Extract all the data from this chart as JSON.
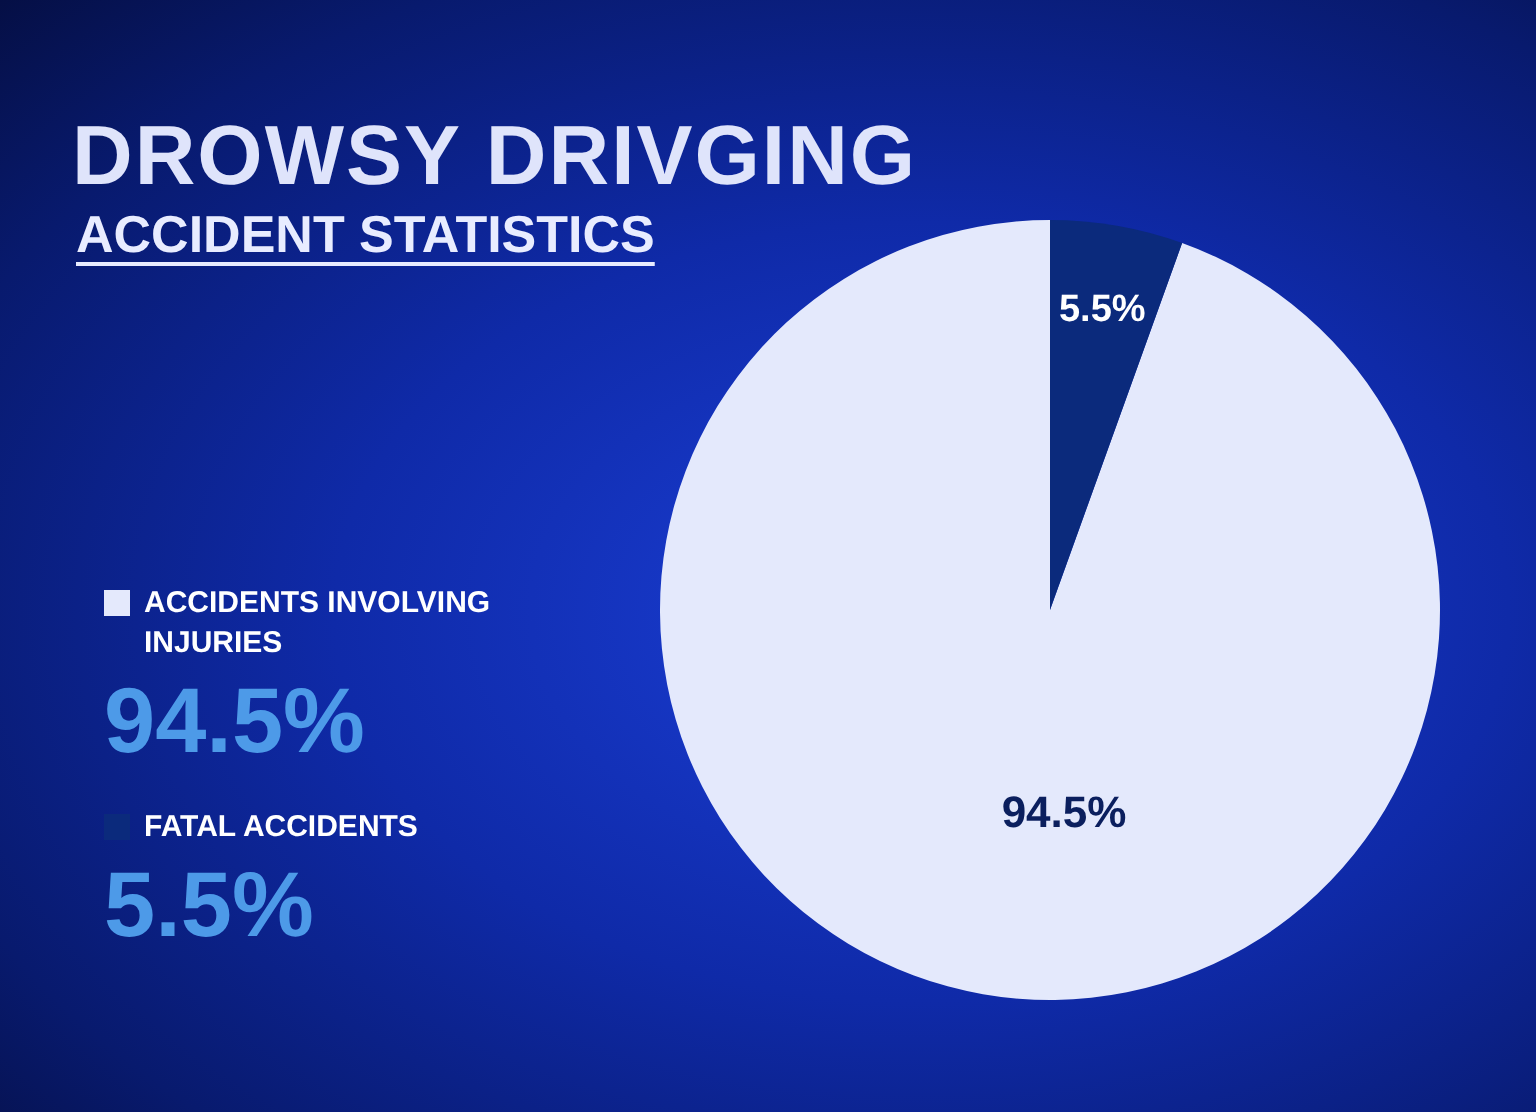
{
  "chart_data": {
    "type": "pie",
    "title": "DROWSY DRIVGING",
    "subtitle": "ACCIDENT STATISTICS",
    "categories": [
      "ACCIDENTS INVOLVING INJURIES",
      "FATAL ACCIDENTS"
    ],
    "values": [
      94.5,
      5.5
    ],
    "colors": [
      "#e4e9fc",
      "#0b2a7c"
    ],
    "value_labels": [
      "94.5%",
      "5.5%"
    ],
    "legend": "left"
  }
}
